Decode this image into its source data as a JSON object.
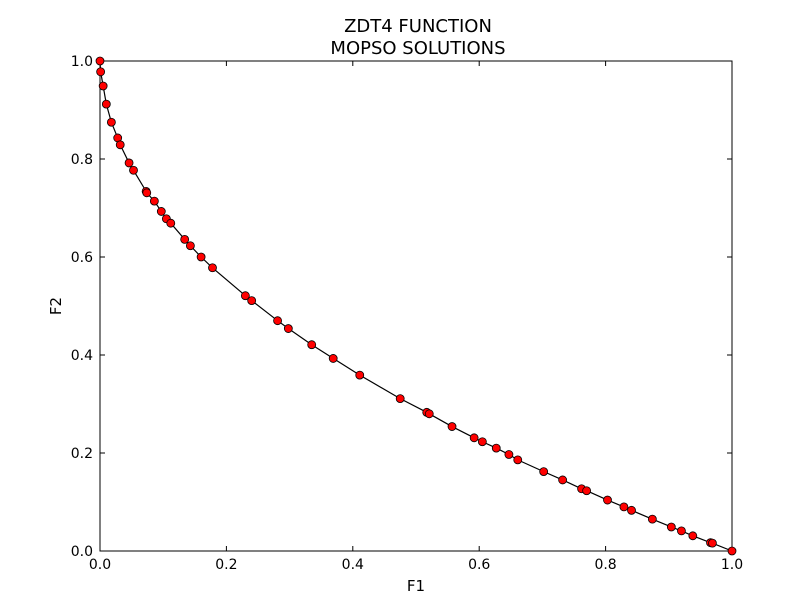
{
  "chart_data": {
    "type": "line",
    "title": "ZDT4 FUNCTION",
    "subtitle": "MOPSO SOLUTIONS",
    "xlabel": "F1",
    "ylabel": "F2",
    "xlim": [
      0.0,
      1.0
    ],
    "ylim": [
      0.0,
      1.0
    ],
    "xticks": [
      "0.0",
      "0.2",
      "0.4",
      "0.6",
      "0.8",
      "1.0"
    ],
    "yticks": [
      "0.0",
      "0.2",
      "0.4",
      "0.6",
      "0.8",
      "1.0"
    ],
    "grid": false,
    "colors": {
      "line": "#000000",
      "marker": "#ff0000",
      "marker_edge": "#000000"
    },
    "series": [
      {
        "points": [
          [
            0.0,
            1.0
          ],
          [
            0.001,
            0.978
          ],
          [
            0.005,
            0.949
          ],
          [
            0.01,
            0.912
          ],
          [
            0.018,
            0.875
          ],
          [
            0.028,
            0.843
          ],
          [
            0.032,
            0.829
          ],
          [
            0.046,
            0.792
          ],
          [
            0.053,
            0.777
          ],
          [
            0.073,
            0.734
          ],
          [
            0.074,
            0.731
          ],
          [
            0.086,
            0.714
          ],
          [
            0.097,
            0.693
          ],
          [
            0.105,
            0.678
          ],
          [
            0.112,
            0.669
          ],
          [
            0.134,
            0.636
          ],
          [
            0.143,
            0.623
          ],
          [
            0.16,
            0.6
          ],
          [
            0.178,
            0.578
          ],
          [
            0.23,
            0.521
          ],
          [
            0.24,
            0.511
          ],
          [
            0.281,
            0.47
          ],
          [
            0.298,
            0.454
          ],
          [
            0.335,
            0.421
          ],
          [
            0.369,
            0.393
          ],
          [
            0.411,
            0.359
          ],
          [
            0.475,
            0.311
          ],
          [
            0.517,
            0.283
          ],
          [
            0.521,
            0.28
          ],
          [
            0.557,
            0.254
          ],
          [
            0.592,
            0.231
          ],
          [
            0.605,
            0.223
          ],
          [
            0.627,
            0.21
          ],
          [
            0.647,
            0.197
          ],
          [
            0.661,
            0.186
          ],
          [
            0.702,
            0.162
          ],
          [
            0.732,
            0.145
          ],
          [
            0.762,
            0.127
          ],
          [
            0.77,
            0.123
          ],
          [
            0.803,
            0.104
          ],
          [
            0.829,
            0.09
          ],
          [
            0.841,
            0.083
          ],
          [
            0.874,
            0.065
          ],
          [
            0.904,
            0.049
          ],
          [
            0.92,
            0.041
          ],
          [
            0.938,
            0.031
          ],
          [
            0.966,
            0.017
          ],
          [
            0.969,
            0.016
          ],
          [
            1.0,
            0.0
          ]
        ]
      }
    ]
  }
}
